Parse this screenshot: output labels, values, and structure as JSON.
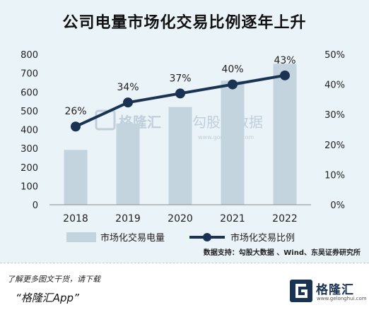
{
  "title": "公司电量市场化交易比例逐年上升",
  "chart_data": {
    "type": "bar+line",
    "categories": [
      "2018",
      "2019",
      "2020",
      "2021",
      "2022"
    ],
    "series": [
      {
        "name": "市场化交易电量",
        "type": "bar",
        "axis": "left",
        "values": [
          292,
          432,
          520,
          660,
          750
        ],
        "color": "#c4d4de"
      },
      {
        "name": "市场化交易比例",
        "type": "line",
        "axis": "right",
        "values": [
          26,
          34,
          37,
          40,
          43
        ],
        "labels": [
          "26%",
          "34%",
          "37%",
          "40%",
          "43%"
        ],
        "color": "#1a3353"
      }
    ],
    "y_left": {
      "ylim": [
        0,
        800
      ],
      "ticks": [
        "0",
        "100",
        "200",
        "300",
        "400",
        "500",
        "600",
        "700",
        "800"
      ]
    },
    "y_right": {
      "ylim": [
        0,
        50
      ],
      "ticks": [
        "0%",
        "10%",
        "20%",
        "30%",
        "40%",
        "50%"
      ]
    },
    "legend_position": "bottom",
    "grid": false
  },
  "watermark": {
    "brand": "格隆汇",
    "partner": "勾股大数据",
    "url": "www.gogudata.com"
  },
  "source": "数据支持：勾股大数据 、Wind、东吴证券研究所",
  "footer": {
    "note": "了解更多图文干货，请下载",
    "app": "“格隆汇App”"
  },
  "brand_logo": {
    "name": "格隆汇",
    "url": "www.gelonghui.com",
    "mark_icon": "gelonghui-g-logo-icon"
  }
}
